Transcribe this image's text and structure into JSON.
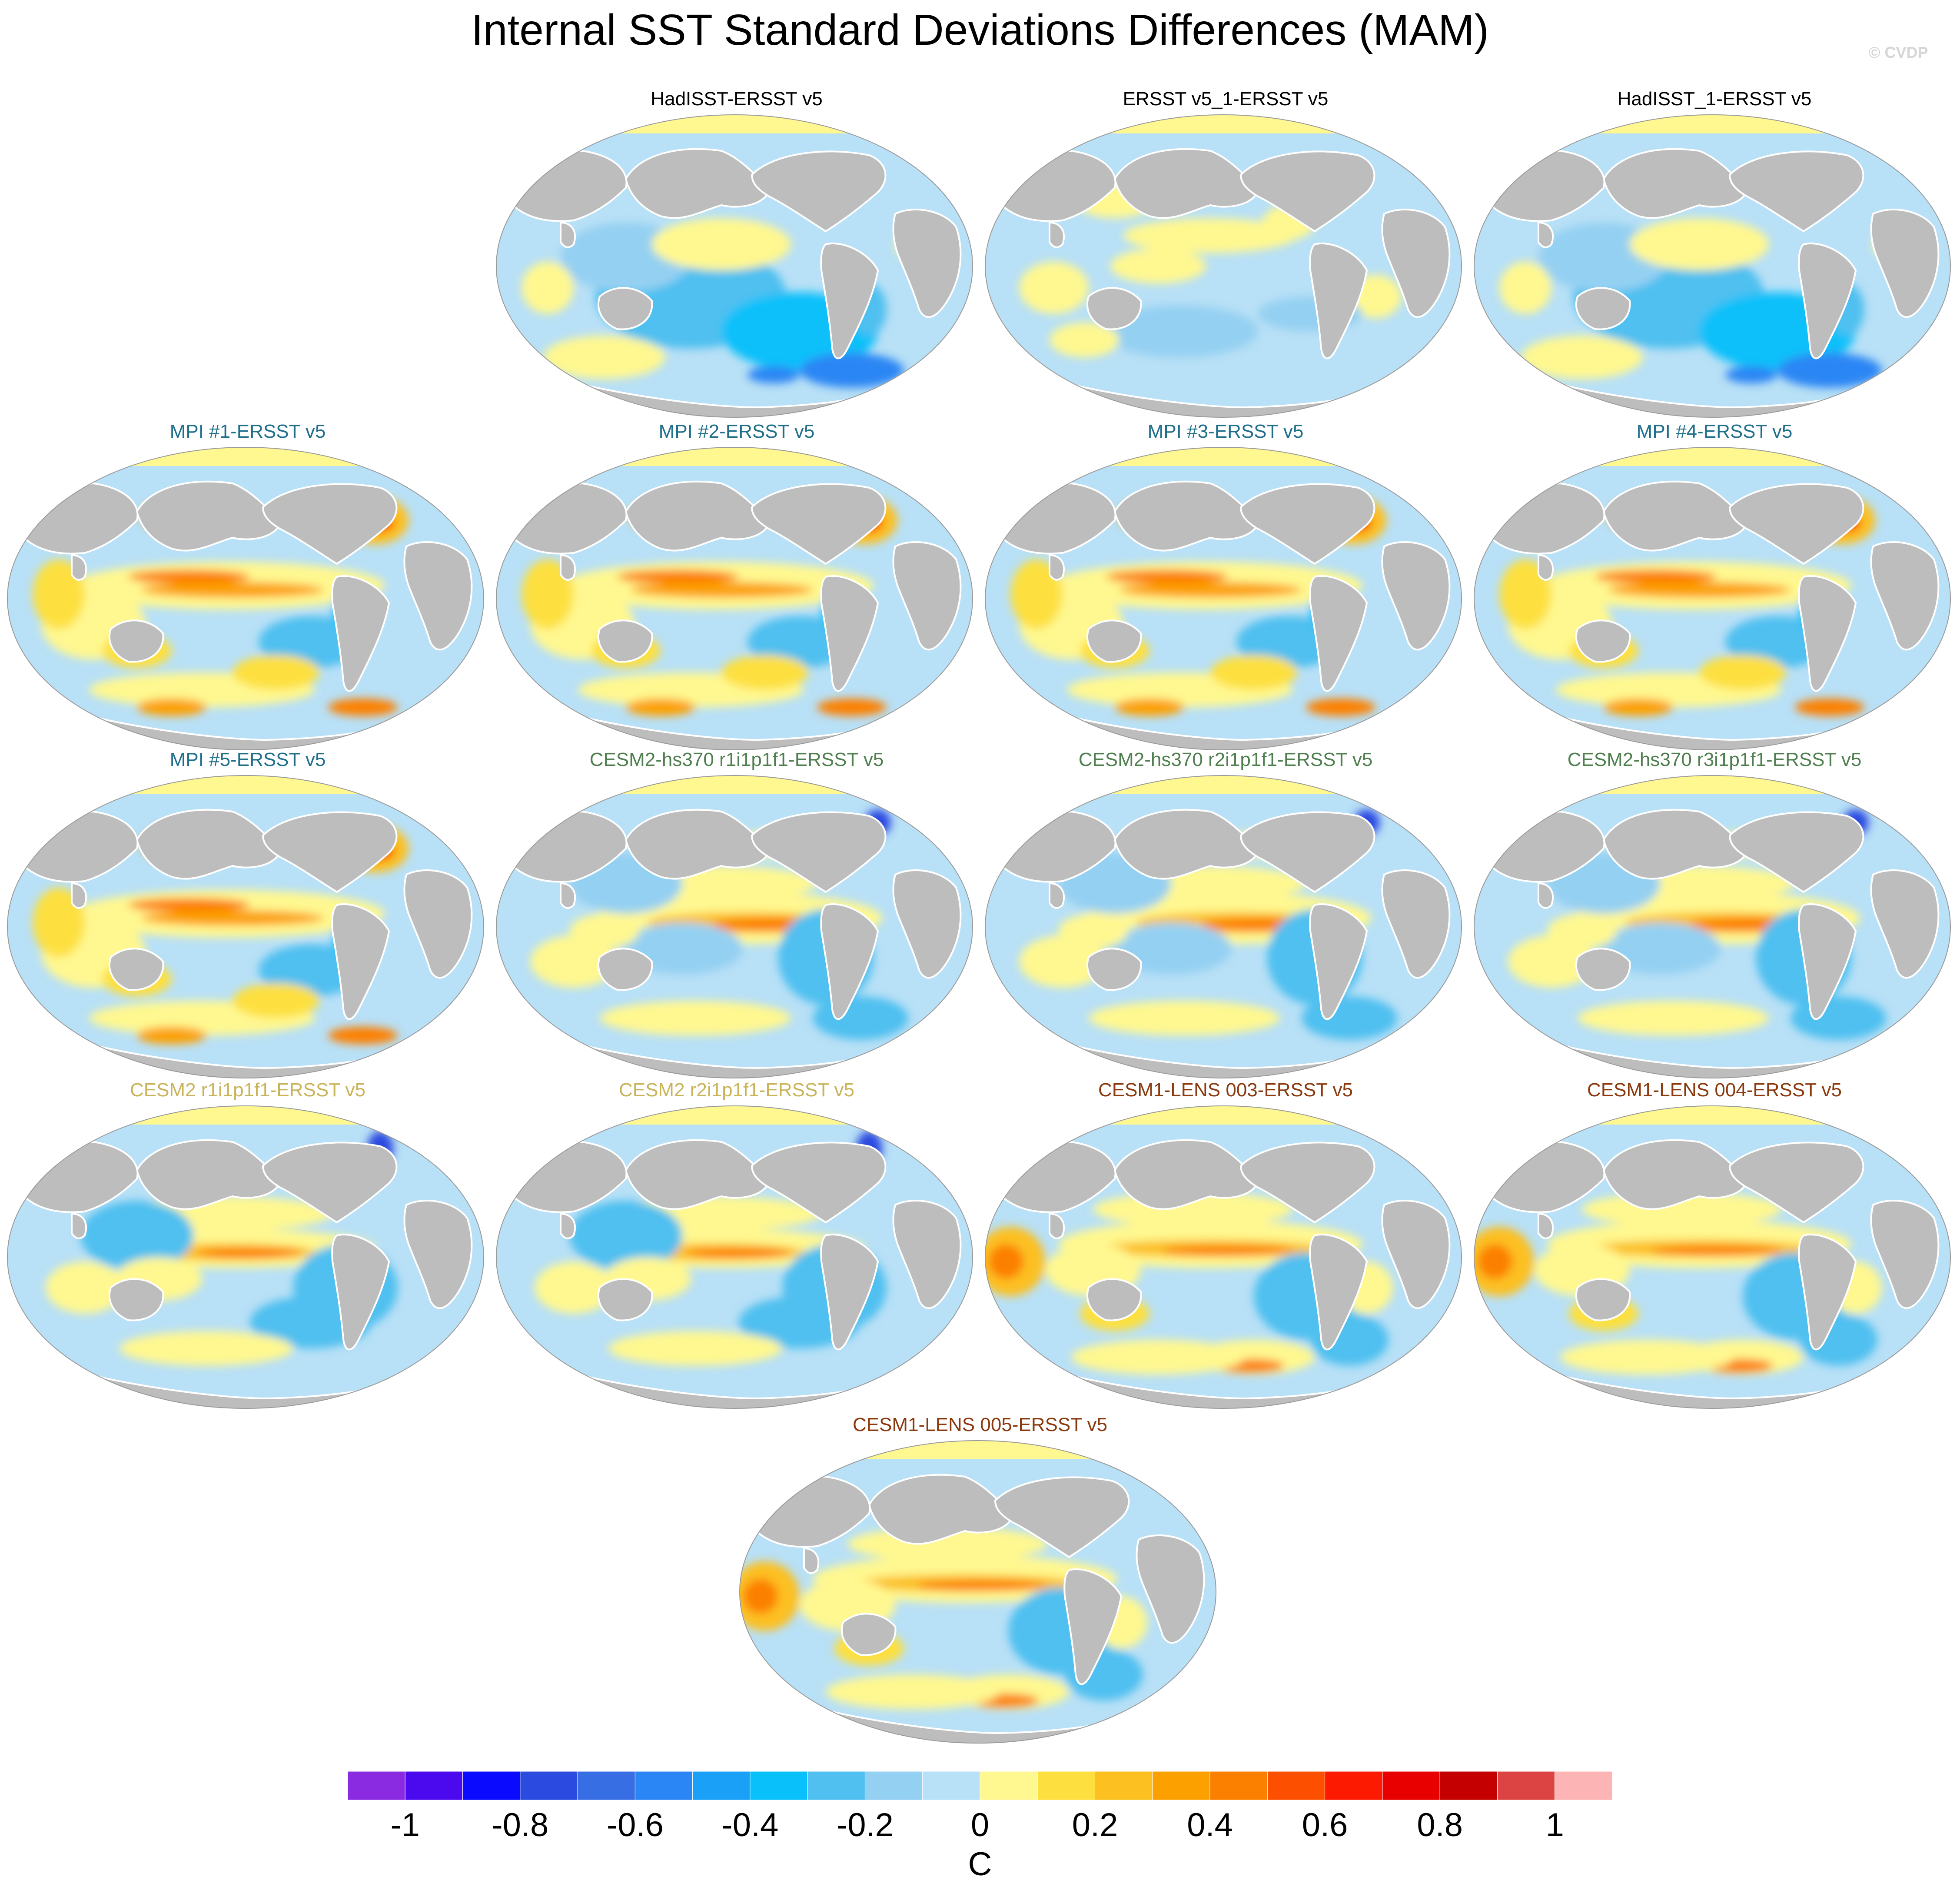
{
  "title": "Internal SST Standard Deviations Differences (MAM)",
  "credit": "© CVDP",
  "panels": [
    {
      "title": "HadISST-ERSST v5",
      "color": "#000000",
      "style": "obs-cool"
    },
    {
      "title": "ERSST v5_1-ERSST v5",
      "color": "#000000",
      "style": "obs-mixed"
    },
    {
      "title": "HadISST_1-ERSST v5",
      "color": "#000000",
      "style": "obs-cool"
    },
    {
      "title": "MPI #1-ERSST v5",
      "color": "#1f6f8b",
      "style": "mpi"
    },
    {
      "title": "MPI #2-ERSST v5",
      "color": "#1f6f8b",
      "style": "mpi"
    },
    {
      "title": "MPI #3-ERSST v5",
      "color": "#1f6f8b",
      "style": "mpi"
    },
    {
      "title": "MPI #4-ERSST v5",
      "color": "#1f6f8b",
      "style": "mpi"
    },
    {
      "title": "MPI #5-ERSST v5",
      "color": "#1f6f8b",
      "style": "mpi"
    },
    {
      "title": "CESM2-hs370 r1i1p1f1-ERSST v5",
      "color": "#4f7f4f",
      "style": "cesm"
    },
    {
      "title": "CESM2-hs370 r2i1p1f1-ERSST v5",
      "color": "#4f7f4f",
      "style": "cesm"
    },
    {
      "title": "CESM2-hs370 r3i1p1f1-ERSST v5",
      "color": "#4f7f4f",
      "style": "cesm"
    },
    {
      "title": "CESM2 r1i1p1f1-ERSST v5",
      "color": "#c9b45a",
      "style": "cesm2"
    },
    {
      "title": "CESM2 r2i1p1f1-ERSST v5",
      "color": "#c9b45a",
      "style": "cesm2"
    },
    {
      "title": "CESM1-LENS 003-ERSST v5",
      "color": "#8b3a0f",
      "style": "lens"
    },
    {
      "title": "CESM1-LENS 004-ERSST v5",
      "color": "#8b3a0f",
      "style": "lens"
    },
    {
      "title": "CESM1-LENS 005-ERSST v5",
      "color": "#8b3a0f",
      "style": "lens"
    }
  ],
  "colorbar": {
    "unit": "C",
    "colors": [
      "#8a2be2",
      "#4b0aee",
      "#0a0aff",
      "#2a4ae0",
      "#386ee4",
      "#2a86f4",
      "#1aa0f6",
      "#0ac0fa",
      "#50c0f0",
      "#94d0f2",
      "#b8e0f6",
      "#fff890",
      "#fde040",
      "#fcc020",
      "#fca000",
      "#fc8000",
      "#fc5000",
      "#fc1a00",
      "#e80000",
      "#c40000",
      "#dc4444",
      "#fcb4b4"
    ],
    "tick_labels": [
      "-1",
      "-0.8",
      "-0.6",
      "-0.4",
      "-0.2",
      "0",
      "0.2",
      "0.4",
      "0.6",
      "0.8",
      "1"
    ]
  }
}
